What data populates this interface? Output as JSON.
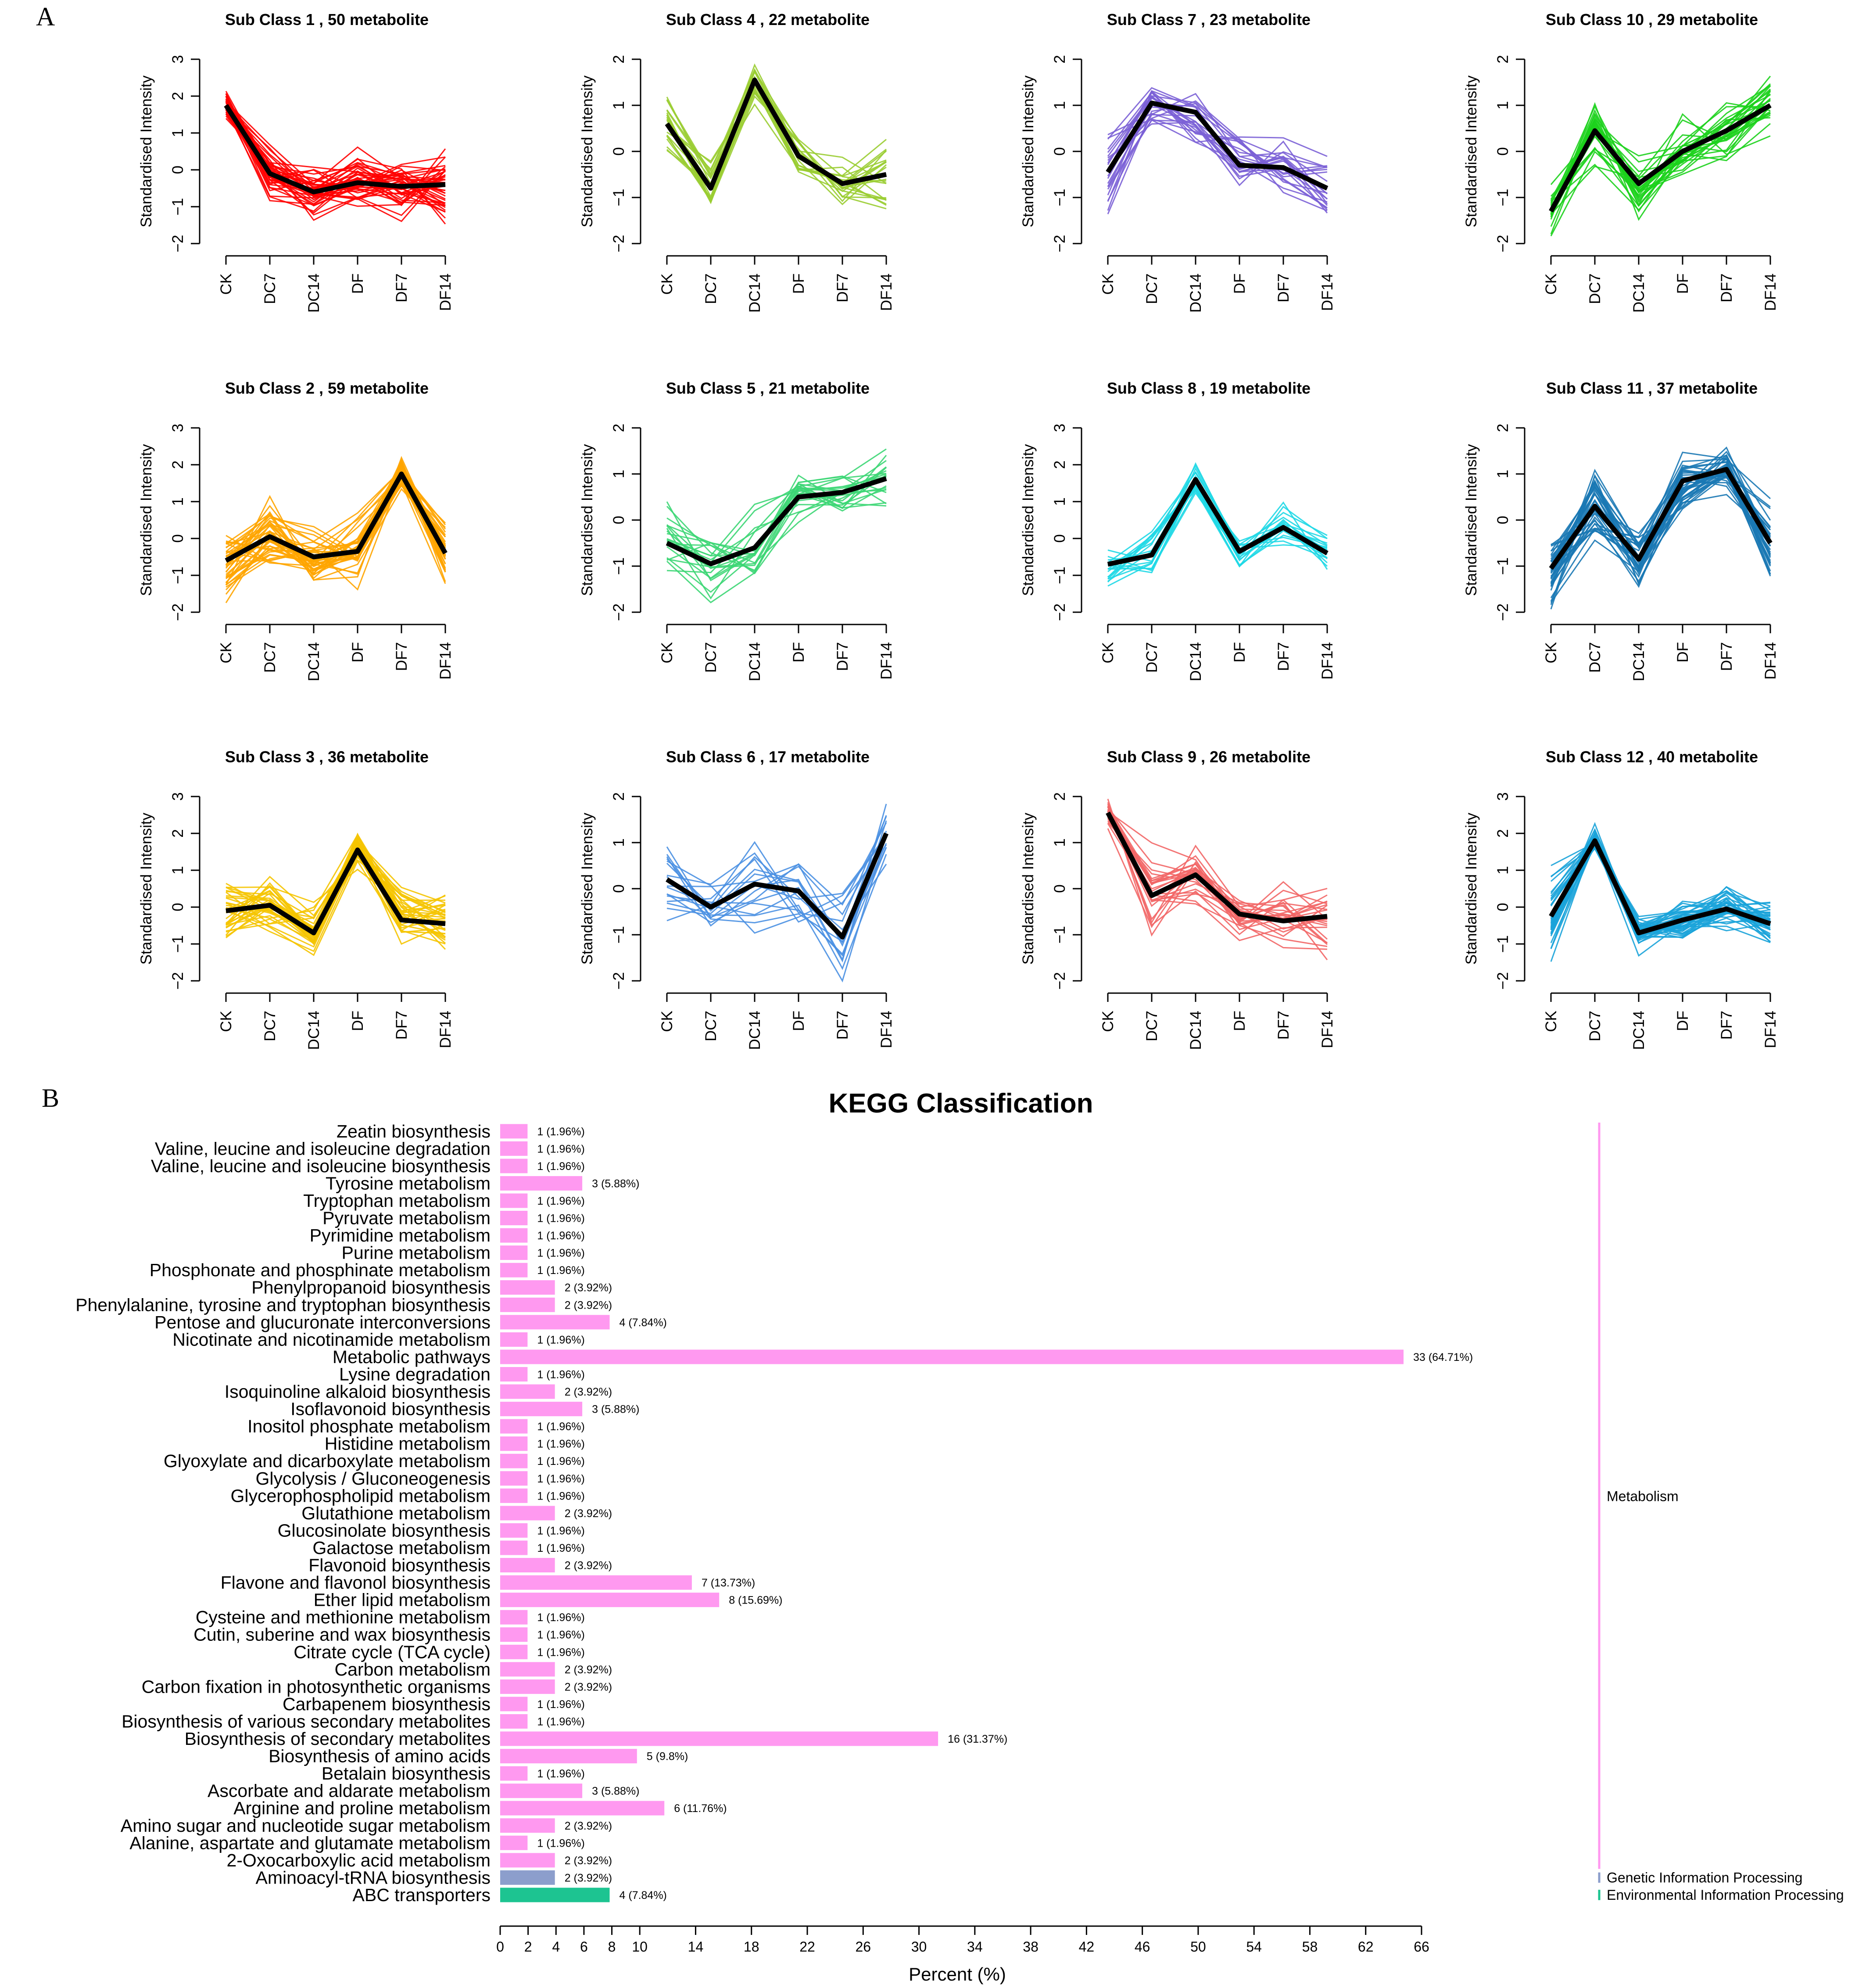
{
  "panel_labels": {
    "a": "A",
    "b": "B"
  },
  "chart_data": [
    {
      "type": "line",
      "panel": "A",
      "ylabel": "Standardised Intensity",
      "categories": [
        "CK",
        "DC7",
        "DC14",
        "DF",
        "DF7",
        "DF14"
      ],
      "subclasses": [
        {
          "title": "Sub Class  1  , 50 metabolite",
          "color": "#FF0000",
          "ylim": [
            -2,
            3
          ],
          "yticks": [
            -2,
            -1,
            0,
            1,
            2,
            3
          ],
          "centroid": [
            1.75,
            -0.1,
            -0.6,
            -0.35,
            -0.45,
            -0.4
          ],
          "spread": [
            0.35,
            0.55,
            0.45,
            0.6,
            0.55,
            0.65
          ]
        },
        {
          "title": "Sub Class  2  , 59 metabolite",
          "color": "#FFA500",
          "ylim": [
            -2,
            3
          ],
          "yticks": [
            -2,
            -1,
            0,
            1,
            2,
            3
          ],
          "centroid": [
            -0.6,
            0.05,
            -0.5,
            -0.35,
            1.75,
            -0.4
          ],
          "spread": [
            0.7,
            0.65,
            0.6,
            0.65,
            0.35,
            0.55
          ]
        },
        {
          "title": "Sub Class  3  , 36 metabolite",
          "color": "#F5C400",
          "ylim": [
            -2,
            3
          ],
          "yticks": [
            -2,
            -1,
            0,
            1,
            2,
            3
          ],
          "centroid": [
            -0.1,
            0.05,
            -0.7,
            1.55,
            -0.35,
            -0.45
          ],
          "spread": [
            0.75,
            0.6,
            0.6,
            0.4,
            0.55,
            0.55
          ]
        },
        {
          "title": "Sub Class  4  , 22 metabolite",
          "color": "#9ACD32",
          "ylim": [
            -2,
            2
          ],
          "yticks": [
            -2,
            -1,
            0,
            1,
            2
          ],
          "centroid": [
            0.6,
            -0.8,
            1.55,
            -0.1,
            -0.7,
            -0.5
          ],
          "spread": [
            0.55,
            0.5,
            0.35,
            0.35,
            0.35,
            0.6
          ]
        },
        {
          "title": "Sub Class  5  , 21 metabolite",
          "color": "#3CD674",
          "ylim": [
            -2,
            2
          ],
          "yticks": [
            -2,
            -1,
            0,
            1,
            2
          ],
          "centroid": [
            -0.5,
            -0.95,
            -0.6,
            0.5,
            0.6,
            0.9
          ],
          "spread": [
            0.6,
            0.55,
            0.65,
            0.5,
            0.45,
            0.5
          ]
        },
        {
          "title": "Sub Class  6  , 17 metabolite",
          "color": "#4A90E2",
          "ylim": [
            -2,
            2
          ],
          "yticks": [
            -2,
            -1,
            0,
            1,
            2
          ],
          "centroid": [
            0.2,
            -0.4,
            0.1,
            -0.05,
            -1.05,
            1.2
          ],
          "spread": [
            0.55,
            0.55,
            0.65,
            0.65,
            0.65,
            0.55
          ]
        },
        {
          "title": "Sub Class  7  , 23 metabolite",
          "color": "#7B61D6",
          "ylim": [
            -2,
            2
          ],
          "yticks": [
            -2,
            -1,
            0,
            1,
            2
          ],
          "centroid": [
            -0.45,
            1.05,
            0.85,
            -0.3,
            -0.35,
            -0.8
          ],
          "spread": [
            0.75,
            0.45,
            0.5,
            0.6,
            0.6,
            0.65
          ]
        },
        {
          "title": "Sub Class  8  , 19 metabolite",
          "color": "#1FD8E6",
          "ylim": [
            -2,
            3
          ],
          "yticks": [
            -2,
            -1,
            0,
            1,
            2,
            3
          ],
          "centroid": [
            -0.7,
            -0.45,
            1.6,
            -0.35,
            0.3,
            -0.4
          ],
          "spread": [
            0.55,
            0.5,
            0.35,
            0.45,
            0.55,
            0.5
          ]
        },
        {
          "title": "Sub Class  9  , 26 metabolite",
          "color": "#F26666",
          "ylim": [
            -2,
            2
          ],
          "yticks": [
            -2,
            -1,
            0,
            1,
            2
          ],
          "centroid": [
            1.65,
            -0.15,
            0.3,
            -0.55,
            -0.7,
            -0.6
          ],
          "spread": [
            0.3,
            0.6,
            0.5,
            0.45,
            0.5,
            0.55
          ]
        },
        {
          "title": "Sub Class  10  , 29 metabolite",
          "color": "#1CD11C",
          "ylim": [
            -2,
            2
          ],
          "yticks": [
            -2,
            -1,
            0,
            1,
            2
          ],
          "centroid": [
            -1.3,
            0.45,
            -0.7,
            0.0,
            0.45,
            1.0
          ],
          "spread": [
            0.45,
            0.55,
            0.55,
            0.55,
            0.45,
            0.4
          ]
        },
        {
          "title": "Sub Class  11  , 37 metabolite",
          "color": "#1A78B4",
          "ylim": [
            -2,
            2
          ],
          "yticks": [
            -2,
            -1,
            0,
            1,
            2
          ],
          "centroid": [
            -1.05,
            0.3,
            -0.85,
            0.85,
            1.1,
            -0.5
          ],
          "spread": [
            0.55,
            0.6,
            0.5,
            0.45,
            0.35,
            0.6
          ]
        },
        {
          "title": "Sub Class  12  , 40 metabolite",
          "color": "#1AA3D9",
          "ylim": [
            -2,
            3
          ],
          "yticks": [
            -2,
            -1,
            0,
            1,
            2,
            3
          ],
          "centroid": [
            -0.25,
            1.8,
            -0.7,
            -0.35,
            -0.05,
            -0.45
          ],
          "spread": [
            0.75,
            0.25,
            0.35,
            0.45,
            0.5,
            0.45
          ]
        }
      ]
    },
    {
      "type": "bar",
      "panel": "B",
      "orientation": "horizontal",
      "title": "KEGG Classification",
      "xlabel": "Percent (%)",
      "xlim": [
        0,
        66
      ],
      "xticks": [
        0,
        2,
        4,
        6,
        8,
        10,
        14,
        18,
        22,
        26,
        30,
        34,
        38,
        42,
        46,
        50,
        54,
        58,
        62,
        66
      ],
      "categories": [
        "Zeatin biosynthesis",
        "Valine, leucine and isoleucine degradation",
        "Valine, leucine and isoleucine biosynthesis",
        "Tyrosine metabolism",
        "Tryptophan metabolism",
        "Pyruvate metabolism",
        "Pyrimidine metabolism",
        "Purine metabolism",
        "Phosphonate and phosphinate metabolism",
        "Phenylpropanoid biosynthesis",
        "Phenylalanine, tyrosine and tryptophan biosynthesis",
        "Pentose and glucuronate interconversions",
        "Nicotinate and nicotinamide metabolism",
        "Metabolic pathways",
        "Lysine degradation",
        "Isoquinoline alkaloid biosynthesis",
        "Isoflavonoid biosynthesis",
        "Inositol phosphate metabolism",
        "Histidine metabolism",
        "Glyoxylate and dicarboxylate metabolism",
        "Glycolysis / Gluconeogenesis",
        "Glycerophospholipid metabolism",
        "Glutathione metabolism",
        "Glucosinolate biosynthesis",
        "Galactose metabolism",
        "Flavonoid biosynthesis",
        "Flavone and flavonol biosynthesis",
        "Ether lipid metabolism",
        "Cysteine and methionine metabolism",
        "Cutin, suberine and wax biosynthesis",
        "Citrate cycle (TCA cycle)",
        "Carbon metabolism",
        "Carbon fixation in photosynthetic organisms",
        "Carbapenem biosynthesis",
        "Biosynthesis of various secondary metabolites",
        "Biosynthesis of secondary metabolites",
        "Biosynthesis of amino acids",
        "Betalain biosynthesis",
        "Ascorbate and aldarate metabolism",
        "Arginine and proline metabolism",
        "Amino sugar and nucleotide sugar metabolism",
        "Alanine, aspartate and glutamate metabolism",
        "2-Oxocarboxylic acid metabolism",
        "Aminoacyl-tRNA biosynthesis",
        "ABC transporters"
      ],
      "counts": [
        1,
        1,
        1,
        3,
        1,
        1,
        1,
        1,
        1,
        2,
        2,
        4,
        1,
        33,
        1,
        2,
        3,
        1,
        1,
        1,
        1,
        1,
        2,
        1,
        1,
        2,
        7,
        8,
        1,
        1,
        1,
        2,
        2,
        1,
        1,
        16,
        5,
        1,
        3,
        6,
        2,
        1,
        2,
        2,
        4
      ],
      "values": [
        1.96,
        1.96,
        1.96,
        5.88,
        1.96,
        1.96,
        1.96,
        1.96,
        1.96,
        3.92,
        3.92,
        7.84,
        1.96,
        64.71,
        1.96,
        3.92,
        5.88,
        1.96,
        1.96,
        1.96,
        1.96,
        1.96,
        3.92,
        1.96,
        1.96,
        3.92,
        13.73,
        15.69,
        1.96,
        1.96,
        1.96,
        3.92,
        3.92,
        1.96,
        1.96,
        31.37,
        9.8,
        1.96,
        5.88,
        11.76,
        3.92,
        1.96,
        3.92,
        3.92,
        7.84
      ],
      "value_labels": [
        "1 (1.96%)",
        "1 (1.96%)",
        "1 (1.96%)",
        "3 (5.88%)",
        "1 (1.96%)",
        "1 (1.96%)",
        "1 (1.96%)",
        "1 (1.96%)",
        "1 (1.96%)",
        "2 (3.92%)",
        "2 (3.92%)",
        "4 (7.84%)",
        "1 (1.96%)",
        "33 (64.71%)",
        "1 (1.96%)",
        "2 (3.92%)",
        "3 (5.88%)",
        "1 (1.96%)",
        "1 (1.96%)",
        "1 (1.96%)",
        "1 (1.96%)",
        "1 (1.96%)",
        "2 (3.92%)",
        "1 (1.96%)",
        "1 (1.96%)",
        "2 (3.92%)",
        "7 (13.73%)",
        "8 (15.69%)",
        "1 (1.96%)",
        "1 (1.96%)",
        "1 (1.96%)",
        "2 (3.92%)",
        "2 (3.92%)",
        "1 (1.96%)",
        "1 (1.96%)",
        "16 (31.37%)",
        "5 (9.8%)",
        "1 (1.96%)",
        "3 (5.88%)",
        "6 (11.76%)",
        "2 (3.92%)",
        "1 (1.96%)",
        "2 (3.92%)",
        "2 (3.92%)",
        "4 (7.84%)"
      ],
      "bar_groups": [
        "Metabolism",
        "Metabolism",
        "Metabolism",
        "Metabolism",
        "Metabolism",
        "Metabolism",
        "Metabolism",
        "Metabolism",
        "Metabolism",
        "Metabolism",
        "Metabolism",
        "Metabolism",
        "Metabolism",
        "Metabolism",
        "Metabolism",
        "Metabolism",
        "Metabolism",
        "Metabolism",
        "Metabolism",
        "Metabolism",
        "Metabolism",
        "Metabolism",
        "Metabolism",
        "Metabolism",
        "Metabolism",
        "Metabolism",
        "Metabolism",
        "Metabolism",
        "Metabolism",
        "Metabolism",
        "Metabolism",
        "Metabolism",
        "Metabolism",
        "Metabolism",
        "Metabolism",
        "Metabolism",
        "Metabolism",
        "Metabolism",
        "Metabolism",
        "Metabolism",
        "Metabolism",
        "Metabolism",
        "Metabolism",
        "Genetic Information Processing",
        "Environmental Information Processing"
      ],
      "groups": [
        {
          "name": "Metabolism",
          "color": "#FF99F0"
        },
        {
          "name": "Genetic Information Processing",
          "color": "#8C9ECC"
        },
        {
          "name": "Environmental Information Processing",
          "color": "#1DC491"
        }
      ]
    }
  ]
}
